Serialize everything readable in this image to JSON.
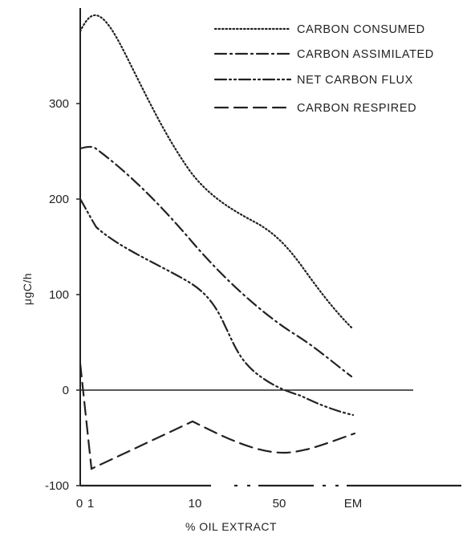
{
  "chart_data": {
    "type": "line",
    "xlabel": "% OIL EXTRACT",
    "ylabel": "μgC/h",
    "x_ticks": [
      "0",
      "1",
      "10",
      "50",
      "EM"
    ],
    "x_tick_values": [
      0,
      1,
      10,
      50,
      "EM"
    ],
    "y_ticks": [
      -100,
      0,
      100,
      200,
      300
    ],
    "ylim": [
      -100,
      395
    ],
    "grid": false,
    "legend_position": "top-right",
    "x_axis_scale": "broken (0, 1, 10, 50, EM)",
    "series": [
      {
        "name": "CARBON CONSUMED",
        "style": "dotted",
        "points": [
          [
            0,
            375
          ],
          [
            0.4,
            383
          ],
          [
            1,
            392
          ],
          [
            3,
            355
          ],
          [
            10,
            230
          ],
          [
            20,
            190
          ],
          [
            50,
            140
          ],
          [
            100,
            95
          ],
          [
            "EM",
            65
          ]
        ]
      },
      {
        "name": "CARBON ASSIMILATED",
        "style": "dash-dot",
        "points": [
          [
            0,
            250
          ],
          [
            1,
            253
          ],
          [
            10,
            150
          ],
          [
            50,
            68
          ],
          [
            "EM",
            12
          ]
        ]
      },
      {
        "name": "NET CARBON FLUX",
        "style": "dash-dot-dot",
        "points": [
          [
            0,
            200
          ],
          [
            1,
            172
          ],
          [
            3,
            150
          ],
          [
            10,
            105
          ],
          [
            13,
            85
          ],
          [
            20,
            30
          ],
          [
            50,
            2
          ],
          [
            100,
            -20
          ],
          [
            "EM",
            -27
          ]
        ]
      },
      {
        "name": "CARBON RESPIRED",
        "style": "dashed",
        "points": [
          [
            0,
            -43
          ],
          [
            1,
            -82
          ],
          [
            10,
            -33
          ],
          [
            50,
            -65
          ],
          [
            "EM",
            -45
          ]
        ]
      }
    ]
  }
}
